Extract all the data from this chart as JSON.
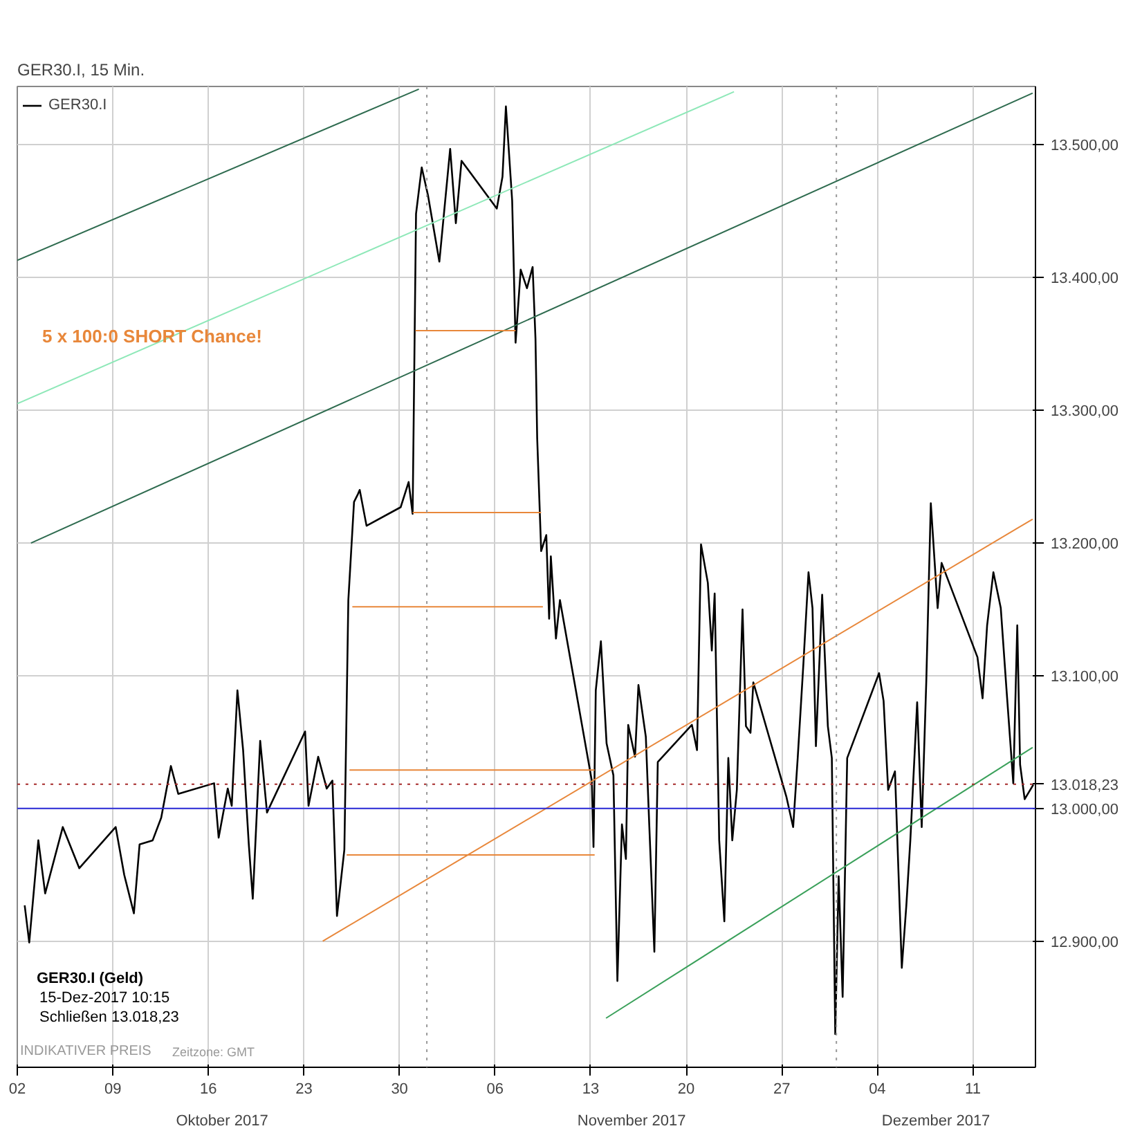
{
  "chart_data": {
    "type": "line",
    "title": "GER30.I, 15 Min.",
    "grid": true,
    "legend": "top left",
    "xlim": [
      "2017-10-02T00:00",
      "2017-12-15T14:00"
    ],
    "xticks": [
      {
        "value": "2017-10-02",
        "label": "02"
      },
      {
        "value": "2017-10-09",
        "label": "09"
      },
      {
        "value": "2017-10-16",
        "label": "16"
      },
      {
        "value": "2017-10-23",
        "label": "23"
      },
      {
        "value": "2017-10-30",
        "label": "30"
      },
      {
        "value": "2017-11-06",
        "label": "06"
      },
      {
        "value": "2017-11-13",
        "label": "13"
      },
      {
        "value": "2017-11-20",
        "label": "20"
      },
      {
        "value": "2017-11-27",
        "label": "27"
      },
      {
        "value": "2017-12-04",
        "label": "04"
      },
      {
        "value": "2017-12-11",
        "label": "11"
      }
    ],
    "ylim": [
      12805,
      13544
    ],
    "yticks": [
      {
        "value": 12900,
        "label": "12.900,00"
      },
      {
        "value": 13000,
        "label": "13.000,00"
      },
      {
        "value": 13100,
        "label": "13.100,00"
      },
      {
        "value": 13200,
        "label": "13.200,00"
      },
      {
        "value": 13300,
        "label": "13.300,00"
      },
      {
        "value": 13400,
        "label": "13.400,00"
      },
      {
        "value": 13500,
        "label": "13.500,00"
      }
    ],
    "series": [
      {
        "name": "GER30.I",
        "color": "#000000",
        "x": [
          "2017-10-02T13:00",
          "2017-10-02T21:00",
          "2017-10-03T13:00",
          "2017-10-04T01:00",
          "2017-10-05T08:00",
          "2017-10-06T13:00",
          "2017-10-09T05:00",
          "2017-10-09T20:00",
          "2017-10-10T13:00",
          "2017-10-10T23:00",
          "2017-10-11T22:00",
          "2017-10-12T13:00",
          "2017-10-13T06:00",
          "2017-10-13T19:00",
          "2017-10-16T10:00",
          "2017-10-16T18:00",
          "2017-10-17T10:00",
          "2017-10-17T17:00",
          "2017-10-18T03:00",
          "2017-10-18T13:00",
          "2017-10-18T23:00",
          "2017-10-19T06:00",
          "2017-10-19T19:00",
          "2017-10-20T07:00",
          "2017-10-23T02:00",
          "2017-10-23T08:00",
          "2017-10-24T01:00",
          "2017-10-24T16:00",
          "2017-10-25T02:00",
          "2017-10-25T10:00",
          "2017-10-25T23:00",
          "2017-10-26T06:00",
          "2017-10-26T16:00",
          "2017-10-26T23:00",
          "2017-10-27T02:00",
          "2017-10-27T14:00",
          "2017-10-30T02:00",
          "2017-10-30T16:00",
          "2017-10-30T23:00",
          "2017-10-31T05:00",
          "2017-10-31T15:00",
          "2017-11-01T02:00",
          "2017-11-01T22:00",
          "2017-11-02T17:00",
          "2017-11-03T03:00",
          "2017-11-03T13:00",
          "2017-11-06T03:00",
          "2017-11-06T13:00",
          "2017-11-06T19:00",
          "2017-11-07T06:00",
          "2017-11-07T12:00",
          "2017-11-07T21:00",
          "2017-11-08T08:00",
          "2017-11-08T18:00",
          "2017-11-08T23:00",
          "2017-11-09T02:00",
          "2017-11-09T09:00",
          "2017-11-09T18:00",
          "2017-11-09T23:00",
          "2017-11-10T02:00",
          "2017-11-10T11:00",
          "2017-11-10T18:00",
          "2017-11-13T02:00",
          "2017-11-13T05:00",
          "2017-11-13T09:00",
          "2017-11-13T18:00",
          "2017-11-14T04:00",
          "2017-11-14T16:00",
          "2017-11-14T23:00",
          "2017-11-15T07:00",
          "2017-11-15T14:00",
          "2017-11-15T18:00",
          "2017-11-16T06:00",
          "2017-11-16T12:00",
          "2017-11-17T01:00",
          "2017-11-17T07:00",
          "2017-11-17T16:00",
          "2017-11-17T22:00",
          "2017-11-20T10:00",
          "2017-11-20T19:00",
          "2017-11-21T02:00",
          "2017-11-21T14:00",
          "2017-11-21T21:00",
          "2017-11-22T02:00",
          "2017-11-22T10:00",
          "2017-11-22T19:00",
          "2017-11-23T02:00",
          "2017-11-23T09:00",
          "2017-11-23T17:00",
          "2017-11-24T03:00",
          "2017-11-24T09:00",
          "2017-11-24T17:00",
          "2017-11-24T22:00",
          "2017-11-27T08:00",
          "2017-11-27T20:00",
          "2017-11-28T04:00",
          "2017-11-28T14:00",
          "2017-11-28T23:00",
          "2017-11-29T06:00",
          "2017-11-29T12:00",
          "2017-11-29T23:00",
          "2017-11-30T09:00",
          "2017-11-30T16:00",
          "2017-11-30T22:00",
          "2017-12-01T04:00",
          "2017-12-01T11:00",
          "2017-12-01T19:00",
          "2017-12-04T03:00",
          "2017-12-04T11:00",
          "2017-12-04T19:00",
          "2017-12-05T07:00",
          "2017-12-05T19:00",
          "2017-12-06T03:00",
          "2017-12-06T10:00",
          "2017-12-06T22:00",
          "2017-12-07T06:00",
          "2017-12-07T14:00",
          "2017-12-07T22:00",
          "2017-12-08T10:00",
          "2017-12-08T17:00",
          "2017-12-11T08:00",
          "2017-12-11T17:00",
          "2017-12-12T01:00",
          "2017-12-12T12:00",
          "2017-12-13T01:00",
          "2017-12-13T11:00",
          "2017-12-13T23:00",
          "2017-12-14T06:00",
          "2017-12-14T11:00",
          "2017-12-14T19:00",
          "2017-12-15T10:15"
        ],
        "values": [
          12927,
          12899,
          12976,
          12936,
          12986,
          12955,
          12986,
          12950,
          12921,
          12973,
          12976,
          12993,
          13032,
          13011,
          13019,
          12978,
          13015,
          13002,
          13089,
          13044,
          12973,
          12932,
          13051,
          12997,
          13058,
          13002,
          13039,
          13015,
          13021,
          12919,
          12969,
          13157,
          13231,
          13237,
          13240,
          13213,
          13227,
          13246,
          13222,
          13448,
          13483,
          13462,
          13412,
          13497,
          13441,
          13488,
          13452,
          13476,
          13529,
          13458,
          13351,
          13406,
          13392,
          13408,
          13354,
          13279,
          13194,
          13206,
          13143,
          13190,
          13128,
          13157,
          13021,
          12971,
          13089,
          13126,
          13049,
          13025,
          12870,
          12988,
          12962,
          13063,
          13039,
          13093,
          13054,
          12988,
          12892,
          13035,
          13063,
          13044,
          13199,
          13170,
          13119,
          13162,
          12976,
          12915,
          13038,
          12976,
          13014,
          13150,
          13062,
          13057,
          13095,
          13009,
          12986,
          13038,
          13109,
          13178,
          13151,
          13047,
          13161,
          13062,
          13038,
          12830,
          12949,
          12858,
          13038,
          13102,
          13081,
          13014,
          13028,
          12880,
          12927,
          12976,
          13080,
          12986,
          13095,
          13230,
          13151,
          13185,
          13114,
          13083,
          13138,
          13178,
          13151,
          13090,
          13019,
          13138,
          13033,
          13007,
          13018
        ]
      },
      {
        "color": "#2e6b4f",
        "x": [
          "2017-10-02T00:00",
          "2017-10-31T10:00"
        ],
        "values": [
          13413,
          13542
        ]
      },
      {
        "color": "#8ee8b8",
        "x": [
          "2017-10-02T00:00",
          "2017-11-23T12:00"
        ],
        "values": [
          13305,
          13540
        ]
      },
      {
        "color": "#2e6b4f",
        "x": [
          "2017-10-03T00:00",
          "2017-12-15T09:00"
        ],
        "values": [
          13200,
          13539
        ]
      },
      {
        "color": "#e8873a",
        "x": [
          "2017-10-24T09:00",
          "2017-12-15T09:00"
        ],
        "values": [
          12900,
          13218
        ]
      },
      {
        "color": "#3aa05a",
        "x": [
          "2017-11-14T03:00",
          "2017-12-15T09:00"
        ],
        "values": [
          12842,
          13046
        ]
      },
      {
        "color": "#e8873a",
        "x": [
          "2017-10-31T04:00",
          "2017-11-07T12:00"
        ],
        "values": [
          13360,
          13360
        ]
      },
      {
        "color": "#e8873a",
        "x": [
          "2017-10-30T23:00",
          "2017-11-09T09:00"
        ],
        "values": [
          13223,
          13223
        ]
      },
      {
        "color": "#e8873a",
        "x": [
          "2017-10-26T13:00",
          "2017-11-09T12:00"
        ],
        "values": [
          13152,
          13152
        ]
      },
      {
        "color": "#e8873a",
        "x": [
          "2017-10-26T08:00",
          "2017-11-13T07:00"
        ],
        "values": [
          13029,
          13029
        ]
      },
      {
        "color": "#e8873a",
        "x": [
          "2017-10-26T03:00",
          "2017-11-13T07:00"
        ],
        "values": [
          12965,
          12965
        ]
      }
    ],
    "ref_lines": [
      {
        "axis": "y",
        "value": 13000,
        "color": "#2b2bd9",
        "line_style": "solid"
      },
      {
        "axis": "y",
        "value": 13018.23,
        "label": "13.018,23",
        "color": "#a52a2a",
        "line_style": "dotted"
      },
      {
        "axis": "x",
        "value": "2017-11-01",
        "color": "#999999",
        "line_style": "dotted"
      },
      {
        "axis": "x",
        "value": "2017-12-01",
        "color": "#999999",
        "line_style": "dotted"
      }
    ],
    "annotations": [
      "5 x 100:0  SHORT Chance!",
      "GER30.I (Geld)",
      "15-Dez-2017 10:15",
      "Schließen  13.018,23",
      "INDIKATIVER PREIS",
      "Zeitzone: GMT",
      "Oktober 2017",
      "November 2017",
      "Dezember 2017"
    ]
  }
}
